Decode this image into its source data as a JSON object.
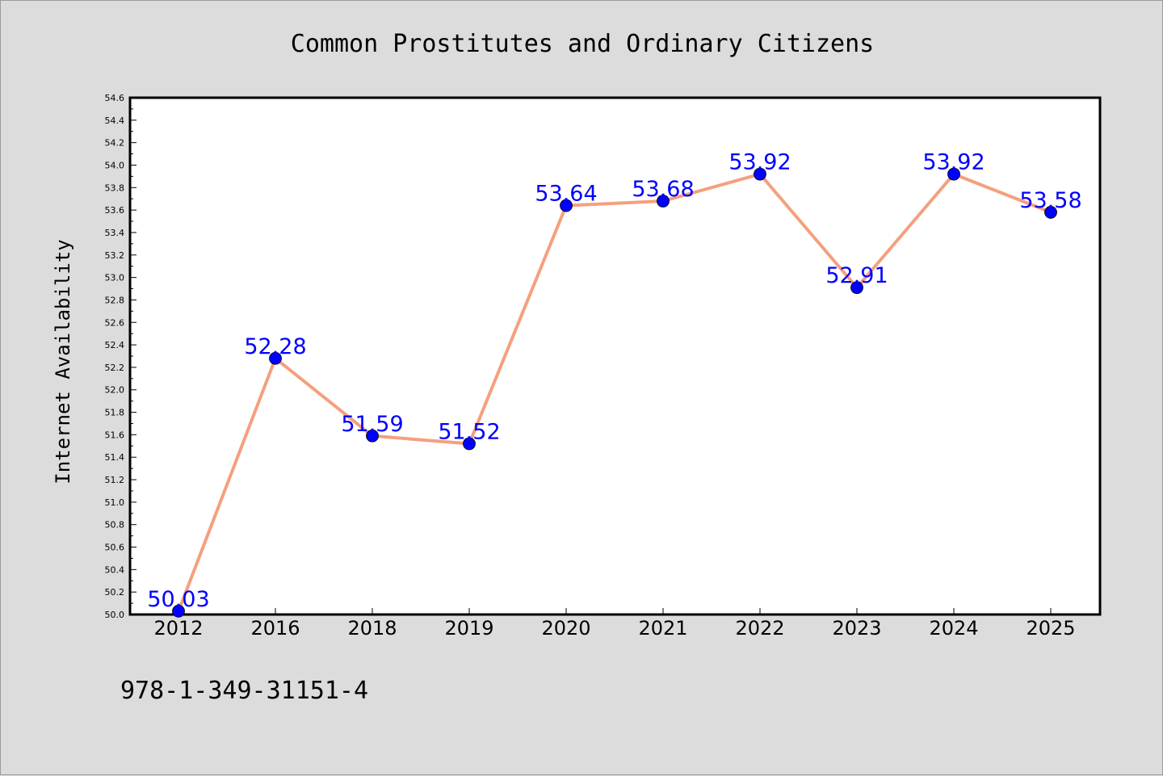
{
  "chart_data": {
    "type": "line",
    "title": "Common Prostitutes and Ordinary Citizens",
    "xlabel": "",
    "ylabel": "Internet Availability",
    "categories": [
      "2012",
      "2016",
      "2018",
      "2019",
      "2020",
      "2021",
      "2022",
      "2023",
      "2024",
      "2025"
    ],
    "values": [
      50.03,
      52.28,
      51.59,
      51.52,
      53.64,
      53.68,
      53.92,
      52.91,
      53.92,
      53.58
    ],
    "data_labels": [
      "50.03",
      "52.28",
      "51.59",
      "51.52",
      "53.64",
      "53.68",
      "53.92",
      "52.91",
      "53.92",
      "53.58"
    ],
    "ylim": [
      50.0,
      54.6
    ],
    "yticks": [
      "50.0",
      "50.2",
      "50.4",
      "50.6",
      "50.8",
      "51.0",
      "51.2",
      "51.4",
      "51.6",
      "51.8",
      "52.0",
      "52.2",
      "52.4",
      "52.6",
      "52.8",
      "53.0",
      "53.2",
      "53.4",
      "53.6",
      "53.8",
      "54.0",
      "54.2",
      "54.4",
      "54.6"
    ],
    "grid": false,
    "legend": "none",
    "line_color": "#f4a07f",
    "marker_color": "#0000ff",
    "label_color": "#0000ff"
  },
  "footnote": "978-1-349-31151-4"
}
